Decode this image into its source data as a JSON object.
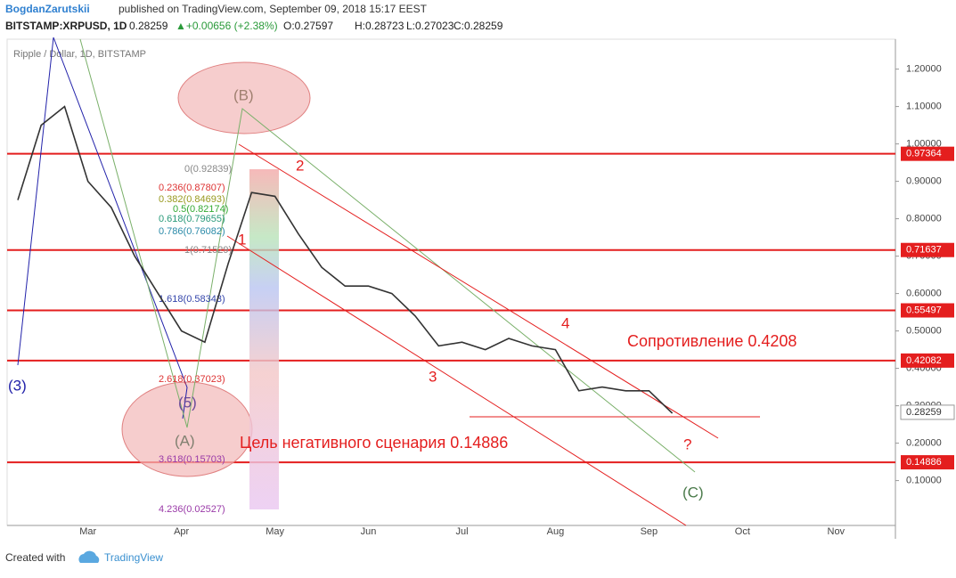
{
  "header": {
    "author": "BogdanZarutskii",
    "published": "published on TradingView.com, September 09, 2018 15:17 EEST",
    "symbol": "BITSTAMP:XRPUSD, 1D",
    "price": "0.28259",
    "change": "▲+0.00656 (+2.38%)",
    "open": "O:0.27597",
    "high": "H:0.28723",
    "low": "L:0.27023",
    "close": "C:0.28259"
  },
  "footer": {
    "created": "Created with",
    "brand": "TradingView"
  },
  "chart_data": {
    "type": "line",
    "title": "Ripple / Dollar, 1D, BITSTAMP",
    "categories": [
      null,
      null,
      null,
      "Mar",
      null,
      null,
      null,
      "Apr",
      null,
      null,
      null,
      "May",
      null,
      null,
      null,
      "Jun",
      null,
      null,
      null,
      "Jul",
      null,
      null,
      null,
      "Aug",
      null,
      null,
      null,
      "Sep",
      null,
      null,
      null,
      "Oct",
      null,
      null,
      null,
      "Nov",
      null,
      null
    ],
    "series": [
      {
        "color": "#333333",
        "values": [
          0.85,
          1.05,
          1.1,
          0.9,
          0.83,
          0.7,
          0.6,
          0.5,
          0.47,
          0.68,
          0.87,
          0.86,
          0.76,
          0.67,
          0.62,
          0.62,
          0.6,
          0.54,
          0.46,
          0.47,
          0.45,
          0.48,
          0.46,
          0.45,
          0.34,
          0.35,
          0.34,
          0.34,
          0.28,
          null,
          null,
          null,
          null,
          null,
          null,
          null,
          null,
          null
        ]
      }
    ],
    "ylim": [
      -0.02,
      1.28
    ],
    "yticks": [
      {
        "value": 0.1,
        "label": "0.10000"
      },
      {
        "value": 0.2,
        "label": "0.20000"
      },
      {
        "value": 0.3,
        "label": "0.30000"
      },
      {
        "value": 0.4,
        "label": "0.40000"
      },
      {
        "value": 0.5,
        "label": "0.50000"
      },
      {
        "value": 0.6,
        "label": "0.60000"
      },
      {
        "value": 0.7,
        "label": "0.70000"
      },
      {
        "value": 0.8,
        "label": "0.80000"
      },
      {
        "value": 0.9,
        "label": "0.90000"
      },
      {
        "value": 1.0,
        "label": "1.00000"
      },
      {
        "value": 1.1,
        "label": "1.10000"
      },
      {
        "value": 1.2,
        "label": "1.20000"
      }
    ],
    "levels": [
      0.97364,
      0.71637,
      0.55497,
      0.42082,
      0.14886
    ],
    "level_color": "#e41e1e",
    "last_price": 0.28259,
    "annotations": {
      "fib": [
        "0(0.92839)",
        "0.236(0.87807)",
        "0.382(0.84693)",
        "0.5(0.82174)",
        "0.618(0.79655)",
        "0.786(0.76082)",
        "1(0.71529)",
        "1.618(0.58343)",
        "2.618(0.37023)",
        "3.618(0.15703)",
        "4.236(0.02527)"
      ],
      "waves": [
        "(B)",
        "(A)",
        "(5)",
        "(3)",
        "(C)",
        "1",
        "2",
        "3",
        "4",
        "?"
      ],
      "resistance": "Сопротивление 0.4208",
      "target": "Цель негативного сценария 0.14886"
    }
  }
}
